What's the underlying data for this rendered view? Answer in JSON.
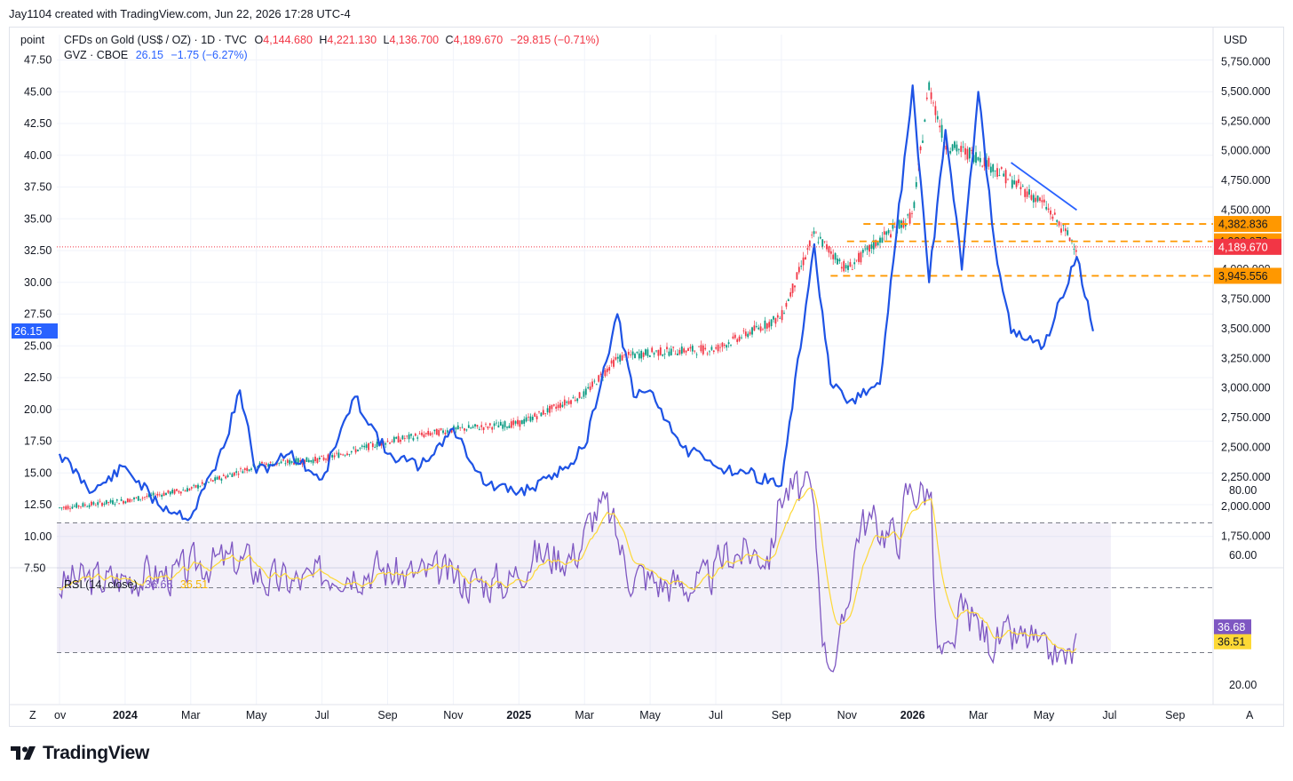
{
  "credit": "Jay1104 created with TradingView.com, Jun 22, 2026 17:28 UTC-4",
  "brand": "TradingView",
  "colors": {
    "gvz": "#2962ff",
    "gvz_dark": "#1e53e5",
    "up": "#089981",
    "down": "#f23645",
    "rsi": "#7e57c2",
    "rsi_ma": "#fdd835",
    "level": "#ff9800",
    "trend": "#2962ff"
  },
  "chart_data": [
    {
      "type": "line",
      "title": "CFDs on Gold (US$ / OZ) · 1D · TVC",
      "ohlc": {
        "O": "4,144.680",
        "H": "4,221.130",
        "L": "4,136.700",
        "C": "4,189.670",
        "change": "−29.815 (−0.71%)"
      },
      "legend2": {
        "name": "GVZ · CBOE",
        "value": "26.15",
        "change": "−1.75 (−6.27%)"
      },
      "left_axis": {
        "unit": "point",
        "range": [
          7.5,
          47.5
        ],
        "ticks": [
          "47.50",
          "45.00",
          "42.50",
          "40.00",
          "37.50",
          "35.00",
          "32.50",
          "30.00",
          "27.50",
          "25.00",
          "22.50",
          "20.00",
          "17.50",
          "15.00",
          "12.50",
          "10.00",
          "7.50"
        ],
        "last_value": "26.15"
      },
      "right_axis": {
        "unit": "USD",
        "range": [
          1650,
          5750
        ],
        "ticks": [
          "5,750.000",
          "5,500.000",
          "5,250.000",
          "5,000.000",
          "4,750.000",
          "4,500.000",
          "4,000.000",
          "3,750.000",
          "3,500.000",
          "3,250.000",
          "3,000.000",
          "2,750.000",
          "2,500.000",
          "2,250.000",
          "2,000.000",
          "1,750.000"
        ],
        "price_tags": [
          {
            "label": "4,382.836",
            "value": 4382.836,
            "color": "#ff9800"
          },
          {
            "label": "4,236.078",
            "value": 4236.078,
            "color": "#ff9800"
          },
          {
            "label": "4,189.670",
            "value": 4189.67,
            "color": "#f23645"
          },
          {
            "label": "3,945.556",
            "value": 3945.556,
            "color": "#ff9800"
          }
        ]
      },
      "x_axis": {
        "ticks": [
          "ov",
          "2024",
          "Mar",
          "May",
          "Jul",
          "Sep",
          "Nov",
          "2025",
          "Mar",
          "May",
          "Jul",
          "Sep",
          "Nov",
          "2026",
          "Mar",
          "May",
          "Jul",
          "Sep"
        ],
        "bold": [
          "2024",
          "2025",
          "2026"
        ]
      },
      "series": [
        {
          "name": "CFDs on Gold (US$ / OZ)",
          "kind": "candles",
          "x": [
            "2023-11",
            "2024-01",
            "2024-03",
            "2024-05",
            "2024-07",
            "2024-09",
            "2024-11",
            "2025-01",
            "2025-03",
            "2025-04",
            "2025-05",
            "2025-07",
            "2025-09",
            "2025-10",
            "2025-11",
            "2025-12",
            "2026-01",
            "2026-01b",
            "2026-02",
            "2026-03",
            "2026-04",
            "2026-05",
            "2026-06"
          ],
          "y": [
            1990,
            2050,
            2150,
            2350,
            2400,
            2550,
            2650,
            2700,
            2950,
            3250,
            3300,
            3330,
            3600,
            4300,
            4000,
            4250,
            4450,
            5550,
            5050,
            4950,
            4750,
            4550,
            4190
          ]
        },
        {
          "name": "GVZ · CBOE",
          "kind": "line",
          "x": [
            "2023-11",
            "2023-12",
            "2024-01",
            "2024-02",
            "2024-03",
            "2024-04",
            "2024-04b",
            "2024-05",
            "2024-06",
            "2024-07",
            "2024-08",
            "2024-09",
            "2024-10",
            "2024-11",
            "2024-12",
            "2025-01",
            "2025-02",
            "2025-03",
            "2025-04",
            "2025-04b",
            "2025-05",
            "2025-06",
            "2025-07",
            "2025-08",
            "2025-09",
            "2025-10",
            "2025-10b",
            "2025-11",
            "2025-12",
            "2026-01",
            "2026-01b",
            "2026-02",
            "2026-02b",
            "2026-03",
            "2026-03b",
            "2026-04",
            "2026-05",
            "2026-06",
            "2026-06b"
          ],
          "y": [
            16.5,
            13.5,
            15.5,
            12.5,
            11.5,
            17,
            21.5,
            15,
            16.5,
            14.5,
            21,
            16.5,
            15.5,
            18.5,
            14,
            13.5,
            14.5,
            17,
            27.5,
            21,
            21.5,
            17,
            15.5,
            15,
            14,
            33,
            22,
            20.5,
            22,
            45.5,
            30,
            42,
            31,
            45,
            33,
            26,
            25,
            32,
            26.15
          ]
        },
        {
          "name": "RSI (14, close)",
          "kind": "indicator",
          "value": "36.68",
          "ma_value": "36.51",
          "axis": [
            "80.00",
            "60.00",
            "20.00"
          ],
          "bands": [
            70,
            50,
            30
          ]
        }
      ],
      "annotations": {
        "trendline_from": [
          4900,
          "2026-04"
        ],
        "trendline_to": [
          4500,
          "2026-06"
        ]
      }
    }
  ]
}
